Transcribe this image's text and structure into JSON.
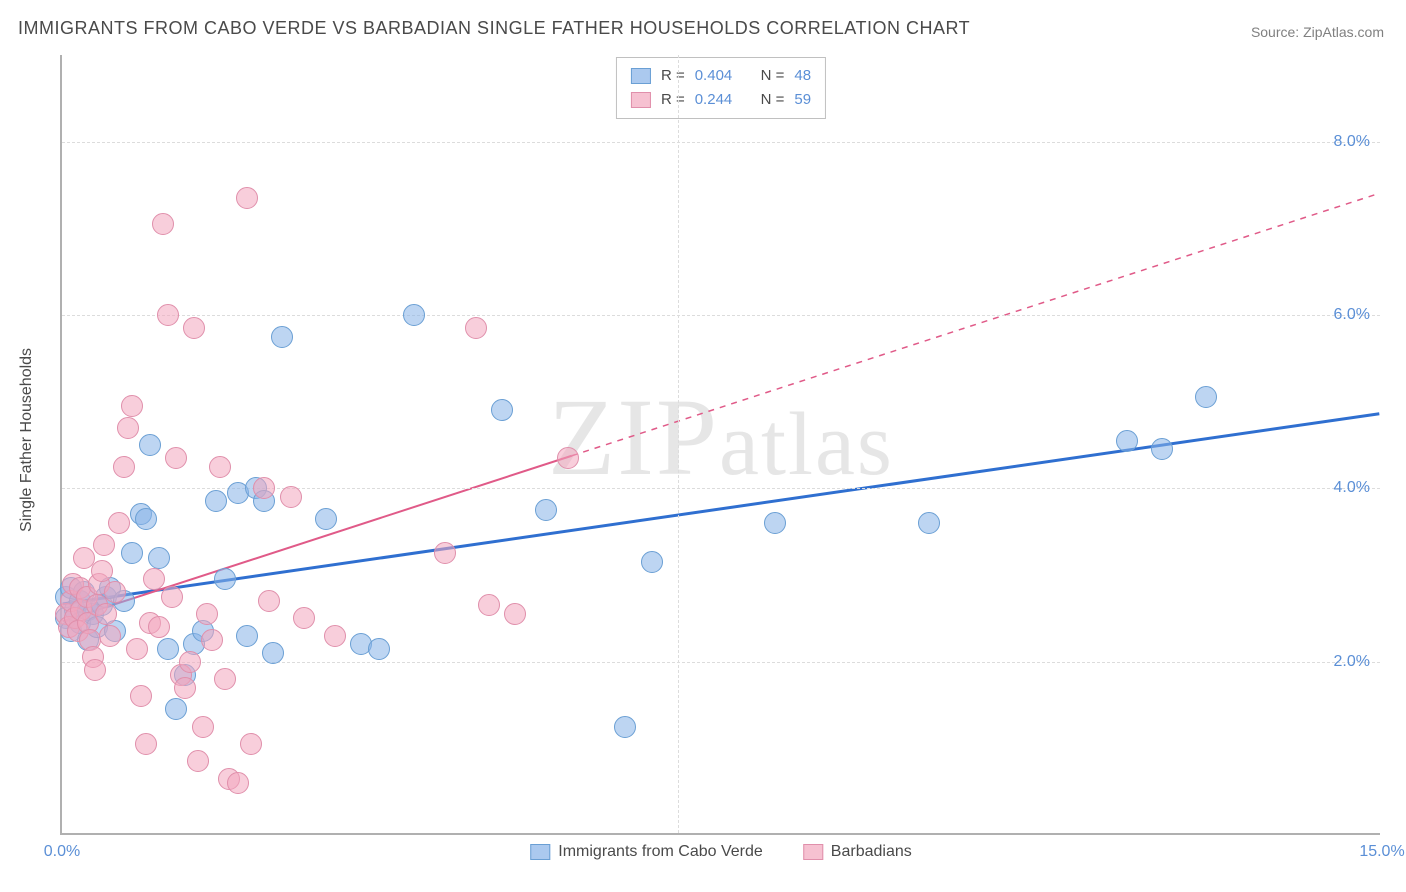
{
  "title": "IMMIGRANTS FROM CABO VERDE VS BARBADIAN SINGLE FATHER HOUSEHOLDS CORRELATION CHART",
  "source": "Source: ZipAtlas.com",
  "watermark": "ZIPatlas",
  "y_axis_label": "Single Father Households",
  "chart": {
    "type": "scatter",
    "xlim": [
      0,
      15
    ],
    "ylim": [
      0,
      9
    ],
    "x_ticks": [
      {
        "v": 0,
        "label": "0.0%"
      },
      {
        "v": 15,
        "label": "15.0%"
      }
    ],
    "y_ticks": [
      {
        "v": 2,
        "label": "2.0%"
      },
      {
        "v": 4,
        "label": "4.0%"
      },
      {
        "v": 6,
        "label": "6.0%"
      },
      {
        "v": 8,
        "label": "8.0%"
      }
    ],
    "gridlines_v": [
      7
    ],
    "background_color": "#ffffff",
    "grid_color": "#dcdcdc",
    "axis_color": "#b0b0b0",
    "tick_label_color": "#5b8fd6",
    "point_radius": 11,
    "series": [
      {
        "name": "Immigrants from Cabo Verde",
        "color_fill": "rgba(135,178,232,0.55)",
        "color_stroke": "#6a9fd4",
        "class": "point-blue",
        "swatch_class": "swatch-blue",
        "stats": {
          "R": "0.404",
          "N": "48"
        },
        "trend": {
          "x1": 0,
          "y1": 2.65,
          "x2": 15,
          "y2": 4.85,
          "solid_until_x": 15,
          "color": "#2f6fd0",
          "width": 3
        },
        "points": [
          [
            0.05,
            2.5
          ],
          [
            0.1,
            2.35
          ],
          [
            0.05,
            2.75
          ],
          [
            0.1,
            2.85
          ],
          [
            0.15,
            2.6
          ],
          [
            0.2,
            2.7
          ],
          [
            0.2,
            2.45
          ],
          [
            0.25,
            2.8
          ],
          [
            0.3,
            2.6
          ],
          [
            0.35,
            2.55
          ],
          [
            0.3,
            2.25
          ],
          [
            0.4,
            2.4
          ],
          [
            0.45,
            2.65
          ],
          [
            0.5,
            2.75
          ],
          [
            0.55,
            2.85
          ],
          [
            0.6,
            2.35
          ],
          [
            0.7,
            2.7
          ],
          [
            0.8,
            3.25
          ],
          [
            0.9,
            3.7
          ],
          [
            0.95,
            3.65
          ],
          [
            1.0,
            4.5
          ],
          [
            1.1,
            3.2
          ],
          [
            1.2,
            2.15
          ],
          [
            1.3,
            1.45
          ],
          [
            1.4,
            1.85
          ],
          [
            1.5,
            2.2
          ],
          [
            1.6,
            2.35
          ],
          [
            1.75,
            3.85
          ],
          [
            1.85,
            2.95
          ],
          [
            2.0,
            3.95
          ],
          [
            2.1,
            2.3
          ],
          [
            2.2,
            4.0
          ],
          [
            2.3,
            3.85
          ],
          [
            2.4,
            2.1
          ],
          [
            2.5,
            5.75
          ],
          [
            3.0,
            3.65
          ],
          [
            3.4,
            2.2
          ],
          [
            3.6,
            2.15
          ],
          [
            4.0,
            6.0
          ],
          [
            5.0,
            4.9
          ],
          [
            5.5,
            3.75
          ],
          [
            6.4,
            1.25
          ],
          [
            6.7,
            3.15
          ],
          [
            8.1,
            3.6
          ],
          [
            9.85,
            3.6
          ],
          [
            12.1,
            4.55
          ],
          [
            13.0,
            5.05
          ],
          [
            12.5,
            4.45
          ]
        ]
      },
      {
        "name": "Barbadians",
        "color_fill": "rgba(242,166,190,0.55)",
        "color_stroke": "#e08fab",
        "class": "point-pink",
        "swatch_class": "swatch-pink",
        "stats": {
          "R": "0.244",
          "N": "59"
        },
        "trend": {
          "x1": 0,
          "y1": 2.45,
          "x2": 15,
          "y2": 7.4,
          "solid_until_x": 5.8,
          "color": "#e05a88",
          "width": 2
        },
        "points": [
          [
            0.05,
            2.55
          ],
          [
            0.08,
            2.4
          ],
          [
            0.1,
            2.7
          ],
          [
            0.12,
            2.9
          ],
          [
            0.15,
            2.5
          ],
          [
            0.18,
            2.35
          ],
          [
            0.2,
            2.85
          ],
          [
            0.22,
            2.6
          ],
          [
            0.25,
            3.2
          ],
          [
            0.28,
            2.75
          ],
          [
            0.3,
            2.45
          ],
          [
            0.32,
            2.25
          ],
          [
            0.35,
            2.05
          ],
          [
            0.38,
            1.9
          ],
          [
            0.4,
            2.65
          ],
          [
            0.42,
            2.9
          ],
          [
            0.45,
            3.05
          ],
          [
            0.48,
            3.35
          ],
          [
            0.5,
            2.55
          ],
          [
            0.55,
            2.3
          ],
          [
            0.6,
            2.8
          ],
          [
            0.65,
            3.6
          ],
          [
            0.7,
            4.25
          ],
          [
            0.75,
            4.7
          ],
          [
            0.8,
            4.95
          ],
          [
            0.85,
            2.15
          ],
          [
            0.9,
            1.6
          ],
          [
            0.95,
            1.05
          ],
          [
            1.0,
            2.45
          ],
          [
            1.05,
            2.95
          ],
          [
            1.1,
            2.4
          ],
          [
            1.15,
            7.05
          ],
          [
            1.2,
            6.0
          ],
          [
            1.25,
            2.75
          ],
          [
            1.3,
            4.35
          ],
          [
            1.35,
            1.85
          ],
          [
            1.4,
            1.7
          ],
          [
            1.45,
            2.0
          ],
          [
            1.5,
            5.85
          ],
          [
            1.55,
            0.85
          ],
          [
            1.6,
            1.25
          ],
          [
            1.65,
            2.55
          ],
          [
            1.7,
            2.25
          ],
          [
            1.8,
            4.25
          ],
          [
            1.85,
            1.8
          ],
          [
            1.9,
            0.65
          ],
          [
            2.0,
            0.6
          ],
          [
            2.1,
            7.35
          ],
          [
            2.15,
            1.05
          ],
          [
            2.3,
            4.0
          ],
          [
            2.35,
            2.7
          ],
          [
            2.6,
            3.9
          ],
          [
            2.75,
            2.5
          ],
          [
            3.1,
            2.3
          ],
          [
            4.35,
            3.25
          ],
          [
            4.7,
            5.85
          ],
          [
            4.85,
            2.65
          ],
          [
            5.15,
            2.55
          ],
          [
            5.75,
            4.35
          ]
        ]
      }
    ]
  },
  "legend_bottom": [
    {
      "label": "Immigrants from Cabo Verde",
      "swatch": "swatch-blue"
    },
    {
      "label": "Barbadians",
      "swatch": "swatch-pink"
    }
  ]
}
